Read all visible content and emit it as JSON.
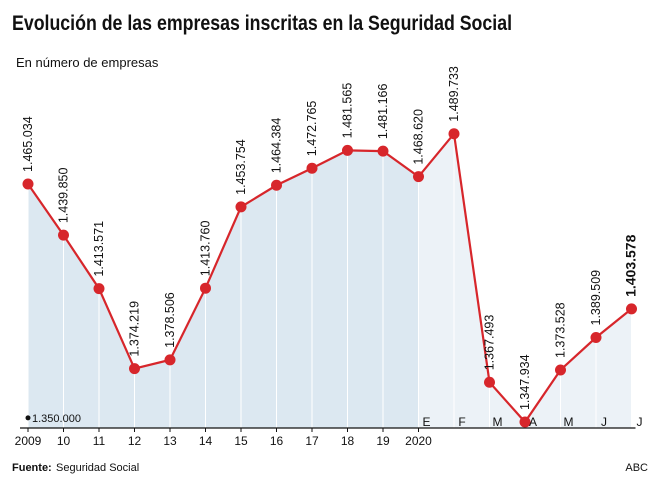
{
  "chart_data": {
    "type": "line",
    "title": "Evolución de las empresas inscritas en la Seguridad Social",
    "subtitle": "En número de empresas",
    "year_categories": [
      "2009",
      "10",
      "11",
      "12",
      "13",
      "14",
      "15",
      "16",
      "17",
      "18",
      "19",
      "2020"
    ],
    "month_categories": [
      "E",
      "F",
      "M",
      "A",
      "M",
      "J",
      "J"
    ],
    "values": [
      1465034,
      1439850,
      1413571,
      1374219,
      1378506,
      1413760,
      1453754,
      1464384,
      1472765,
      1481565,
      1481166,
      1468620,
      1489733,
      1367493,
      1347934,
      1373528,
      1389509,
      1403578
    ],
    "value_labels": [
      "1.465.034",
      "1.439.850",
      "1.413.571",
      "1.374.219",
      "1.378.506",
      "1.413.760",
      "1.453.754",
      "1.464.384",
      "1.472.765",
      "1.481.565",
      "1.481.166",
      "1.468.620",
      "1.489.733",
      "1.367.493",
      "1.347.934",
      "1.373.528",
      "1.389.509",
      "1.403.578"
    ],
    "color": "#d7262b",
    "area_color": "#dce8f1",
    "ylim": [
      1345000,
      1526000
    ],
    "yticks": [
      {
        "value": 1350000,
        "label": "1.350.000"
      }
    ],
    "highlight_last": true,
    "source_label": "Fuente:",
    "source": "Seguridad Social",
    "credit": "ABC"
  }
}
